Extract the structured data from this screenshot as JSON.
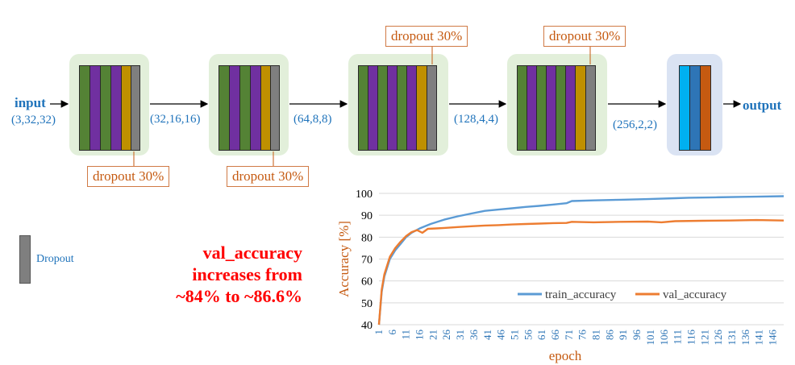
{
  "diagram": {
    "input_label": "input",
    "output_label": "output",
    "shapes": [
      "(3,32,32)",
      "(32,16,16)",
      "(64,8,8)",
      "(128,4,4)",
      "(256,2,2)"
    ],
    "dropout_labels": [
      "dropout 30%",
      "dropout 30%",
      "dropout 30%",
      "dropout 30%"
    ],
    "legend_dropout": "Dropout",
    "note": [
      "val_accuracy",
      "increases from",
      "~84% to ~86.6%"
    ],
    "colors": {
      "green": "#548235",
      "purple": "#7030a0",
      "gold": "#bf9000",
      "gray": "#7f7f7f",
      "cyan": "#00b0f0",
      "blue": "#2e75b6",
      "orange": "#c55a11",
      "block_bg": "#e2efda",
      "final_bg": "#dae3f3"
    }
  },
  "chart_data": {
    "type": "line",
    "xlabel": "epoch",
    "ylabel": "Accuracy [%]",
    "ylim": [
      40,
      100
    ],
    "yticks": [
      40,
      50,
      60,
      70,
      80,
      90,
      100
    ],
    "xticks": [
      "1",
      "6",
      "11",
      "16",
      "21",
      "26",
      "31",
      "36",
      "41",
      "46",
      "51",
      "56",
      "61",
      "66",
      "71",
      "76",
      "81",
      "86",
      "91",
      "96",
      "101",
      "106",
      "111",
      "116",
      "121",
      "126",
      "131",
      "136",
      "141",
      "146"
    ],
    "grid": true,
    "legend_position": "bottom-right",
    "series": [
      {
        "name": "train_accuracy",
        "color": "#5b9bd5",
        "points": [
          [
            1,
            40
          ],
          [
            2,
            55
          ],
          [
            3,
            62
          ],
          [
            5,
            70
          ],
          [
            7,
            74
          ],
          [
            9,
            77
          ],
          [
            11,
            80
          ],
          [
            13,
            82
          ],
          [
            16,
            84
          ],
          [
            20,
            86
          ],
          [
            25,
            88
          ],
          [
            30,
            89.5
          ],
          [
            35,
            90.8
          ],
          [
            40,
            92
          ],
          [
            45,
            92.6
          ],
          [
            50,
            93.2
          ],
          [
            55,
            93.8
          ],
          [
            60,
            94.3
          ],
          [
            65,
            94.9
          ],
          [
            70,
            95.5
          ],
          [
            72,
            96.5
          ],
          [
            80,
            96.8
          ],
          [
            90,
            97.1
          ],
          [
            100,
            97.4
          ],
          [
            110,
            97.8
          ],
          [
            115,
            98
          ],
          [
            125,
            98.2
          ],
          [
            135,
            98.4
          ],
          [
            140,
            98.5
          ],
          [
            150,
            98.7
          ]
        ]
      },
      {
        "name": "val_accuracy",
        "color": "#ed7d31",
        "points": [
          [
            1,
            40
          ],
          [
            2,
            56
          ],
          [
            3,
            63
          ],
          [
            5,
            71
          ],
          [
            7,
            75
          ],
          [
            9,
            78
          ],
          [
            11,
            80.5
          ],
          [
            13,
            82.3
          ],
          [
            15,
            83.2
          ],
          [
            17,
            82
          ],
          [
            19,
            83.8
          ],
          [
            22,
            84
          ],
          [
            25,
            84.2
          ],
          [
            30,
            84.6
          ],
          [
            35,
            85
          ],
          [
            40,
            85.3
          ],
          [
            45,
            85.5
          ],
          [
            50,
            85.8
          ],
          [
            55,
            86
          ],
          [
            60,
            86.2
          ],
          [
            65,
            86.4
          ],
          [
            70,
            86.5
          ],
          [
            72,
            87
          ],
          [
            80,
            86.8
          ],
          [
            90,
            87
          ],
          [
            100,
            87.1
          ],
          [
            105,
            86.8
          ],
          [
            110,
            87.3
          ],
          [
            120,
            87.5
          ],
          [
            130,
            87.6
          ],
          [
            140,
            87.8
          ],
          [
            150,
            87.6
          ]
        ]
      }
    ]
  }
}
